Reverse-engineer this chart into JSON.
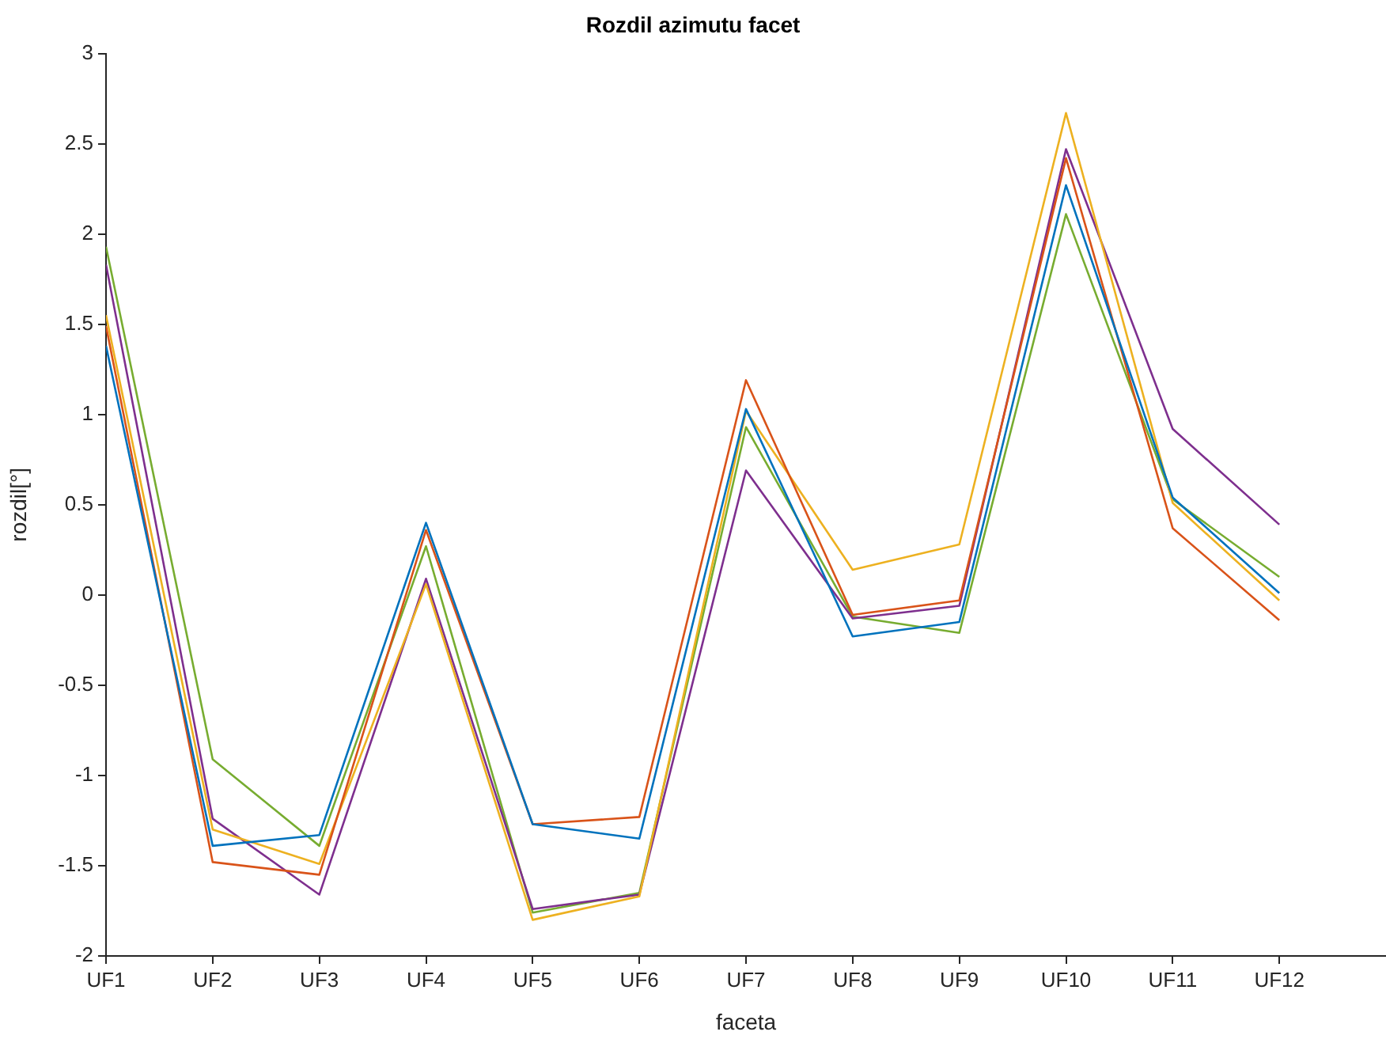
{
  "chart_data": {
    "type": "line",
    "title": "Rozdil azimutu facet",
    "xlabel": "faceta",
    "ylabel": "rozdil[°]",
    "categories": [
      "UF1",
      "UF2",
      "UF3",
      "UF4",
      "UF5",
      "UF6",
      "UF7",
      "UF8",
      "UF9",
      "UF10",
      "UF11",
      "UF12"
    ],
    "series": [
      {
        "color": "#0072bd",
        "values": [
          1.38,
          -1.39,
          -1.33,
          0.4,
          -1.27,
          -1.35,
          1.03,
          -0.23,
          -0.15,
          2.27,
          0.54,
          0.01
        ]
      },
      {
        "color": "#d95319",
        "values": [
          1.49,
          -1.48,
          -1.55,
          0.36,
          -1.27,
          -1.23,
          1.19,
          -0.11,
          -0.03,
          2.42,
          0.37,
          -0.14
        ]
      },
      {
        "color": "#edb120",
        "values": [
          1.55,
          -1.3,
          -1.49,
          0.06,
          -1.8,
          -1.67,
          1.02,
          0.14,
          0.28,
          2.67,
          0.51,
          -0.03
        ]
      },
      {
        "color": "#7e2f8e",
        "values": [
          1.83,
          -1.24,
          -1.66,
          0.09,
          -1.74,
          -1.66,
          0.69,
          -0.13,
          -0.06,
          2.47,
          0.92,
          0.39
        ]
      },
      {
        "color": "#77ac30",
        "values": [
          1.93,
          -0.91,
          -1.39,
          0.27,
          -1.76,
          -1.65,
          0.93,
          -0.12,
          -0.21,
          2.11,
          0.53,
          0.1
        ]
      }
    ],
    "ylim": [
      -2,
      3
    ],
    "yticks": [
      -2,
      -1.5,
      -1,
      -0.5,
      0,
      0.5,
      1,
      1.5,
      2,
      2.5,
      3
    ],
    "grid": false,
    "legend": false,
    "marker": "none",
    "line_style": "solid"
  }
}
